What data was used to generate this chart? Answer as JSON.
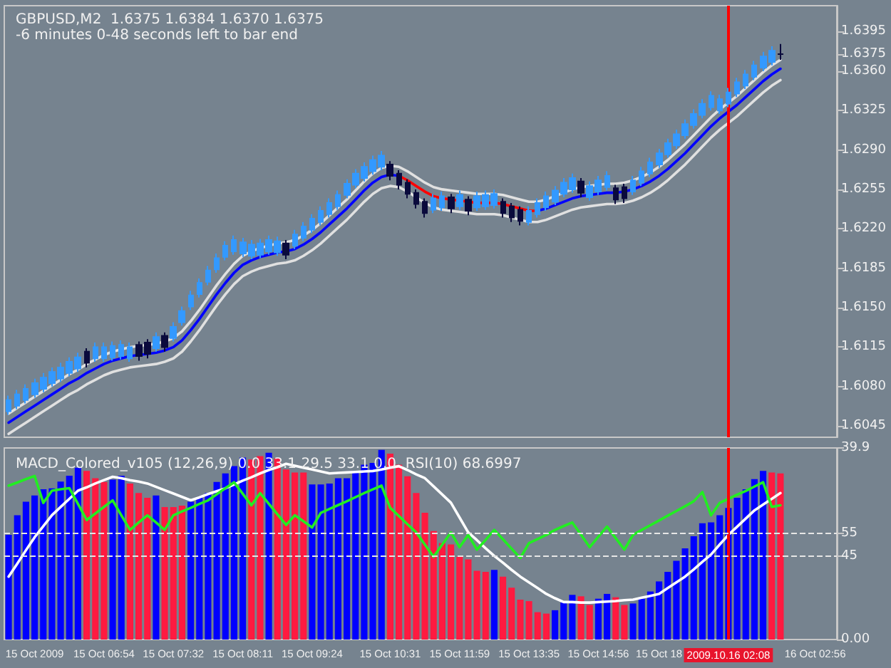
{
  "chart_data": [
    {
      "type": "candlestick",
      "title": "GBPUSD,M2  1.6375 1.6384 1.6370 1.6375",
      "subtitle": "-6 minutes 0-48 seconds left to bar end",
      "categories": [
        null,
        null,
        null,
        "15 Oct 2009",
        null,
        null,
        null,
        null,
        null,
        null,
        null,
        "15 Oct 06:54",
        null,
        null,
        null,
        null,
        null,
        null,
        null,
        "15 Oct 07:32",
        null,
        null,
        null,
        null,
        null,
        null,
        null,
        "15 Oct 08:11",
        null,
        null,
        null,
        null,
        null,
        null,
        null,
        "15 Oct 09:24",
        null,
        null,
        null,
        null,
        null,
        null,
        null,
        null,
        "15 Oct 10:31",
        null,
        null,
        null,
        null,
        null,
        null,
        null,
        "15 Oct 11:59",
        null,
        null,
        null,
        null,
        null,
        null,
        null,
        "15 Oct 13:35",
        null,
        null,
        null,
        null,
        null,
        null,
        null,
        "15 Oct 14:56",
        null,
        null,
        null,
        null,
        null,
        null,
        "15 Oct 18",
        null,
        null,
        null,
        null,
        null,
        null,
        null,
        "2009.10.16 02:08",
        null,
        null,
        null,
        null,
        null,
        null,
        null,
        null,
        null,
        "16 Oct 02:56",
        null,
        null
      ],
      "ylim": [
        1.6035,
        1.6418
      ],
      "yticks": [
        1.6045,
        {
          "value": 1.608,
          "label": "1.6080"
        },
        1.6115,
        {
          "value": 1.615,
          "label": "1.6150"
        },
        1.6185,
        {
          "value": 1.622,
          "label": "1.6220"
        },
        1.6255,
        {
          "value": 1.629,
          "label": "1.6290"
        },
        1.6325,
        {
          "value": 1.636,
          "label": "1.6360"
        },
        1.6375,
        1.6395
      ],
      "tick_labels": "y",
      "grid": false,
      "ref_lines": [
        {
          "axis": "x",
          "value": "2009.10.16 02:08",
          "label": null,
          "color": "#ff0000"
        }
      ],
      "series": [
        {
          "ohlc": [
            [
              1.6058,
              1.6072,
              1.6055,
              1.6068
            ],
            [
              1.6063,
              1.6077,
              1.606,
              1.6073
            ],
            [
              1.6068,
              1.6082,
              1.6065,
              1.6078
            ],
            [
              1.6073,
              1.6087,
              1.607,
              1.6083
            ],
            [
              1.6078,
              1.6092,
              1.6075,
              1.6088
            ],
            [
              1.6083,
              1.6097,
              1.608,
              1.6093
            ],
            [
              1.6087,
              1.6101,
              1.6084,
              1.6097
            ],
            [
              1.6092,
              1.6106,
              1.6089,
              1.6102
            ],
            [
              1.6096,
              1.611,
              1.6093,
              1.6106
            ],
            [
              1.6111,
              1.6114,
              1.6097,
              1.6101
            ],
            [
              1.6105,
              1.6119,
              1.6102,
              1.6115
            ],
            [
              1.6105,
              1.6119,
              1.6102,
              1.6115
            ],
            [
              1.6106,
              1.612,
              1.6103,
              1.6116
            ],
            [
              1.6107,
              1.6121,
              1.6104,
              1.6117
            ],
            [
              1.6105,
              1.6119,
              1.6102,
              1.6115
            ],
            [
              1.6117,
              1.612,
              1.6103,
              1.6107
            ],
            [
              1.6119,
              1.6122,
              1.6105,
              1.6109
            ],
            [
              1.6114,
              1.6128,
              1.6111,
              1.6124
            ],
            [
              1.6125,
              1.6128,
              1.6111,
              1.6115
            ],
            [
              1.6123,
              1.6137,
              1.612,
              1.6133
            ],
            [
              1.6137,
              1.6151,
              1.6134,
              1.6147
            ],
            [
              1.6151,
              1.6165,
              1.6148,
              1.6161
            ],
            [
              1.6162,
              1.6176,
              1.6159,
              1.6172
            ],
            [
              1.6173,
              1.6187,
              1.617,
              1.6183
            ],
            [
              1.6184,
              1.6198,
              1.6181,
              1.6194
            ],
            [
              1.6195,
              1.6209,
              1.6192,
              1.6205
            ],
            [
              1.62,
              1.6214,
              1.6197,
              1.621
            ],
            [
              1.6198,
              1.6212,
              1.6195,
              1.6208
            ],
            [
              1.6196,
              1.621,
              1.6193,
              1.6206
            ],
            [
              1.6197,
              1.6211,
              1.6194,
              1.6207
            ],
            [
              1.62,
              1.6214,
              1.6197,
              1.621
            ],
            [
              1.6199,
              1.6213,
              1.6196,
              1.6209
            ],
            [
              1.6207,
              1.621,
              1.6193,
              1.6197
            ],
            [
              1.6205,
              1.6219,
              1.6202,
              1.6215
            ],
            [
              1.6212,
              1.6226,
              1.6209,
              1.6222
            ],
            [
              1.6219,
              1.6233,
              1.6216,
              1.6229
            ],
            [
              1.6226,
              1.624,
              1.6223,
              1.6236
            ],
            [
              1.6233,
              1.6247,
              1.623,
              1.6243
            ],
            [
              1.624,
              1.6254,
              1.6237,
              1.625
            ],
            [
              1.625,
              1.6264,
              1.6247,
              1.626
            ],
            [
              1.6259,
              1.6273,
              1.6256,
              1.6269
            ],
            [
              1.6265,
              1.6279,
              1.6262,
              1.6275
            ],
            [
              1.6271,
              1.6285,
              1.6268,
              1.6281
            ],
            [
              1.6275,
              1.6289,
              1.6272,
              1.6285
            ],
            [
              1.6277,
              1.628,
              1.6263,
              1.6267
            ],
            [
              1.6269,
              1.6272,
              1.6255,
              1.6259
            ],
            [
              1.6261,
              1.6264,
              1.6247,
              1.6251
            ],
            [
              1.6252,
              1.6255,
              1.6238,
              1.6242
            ],
            [
              1.6244,
              1.6247,
              1.623,
              1.6234
            ],
            [
              1.6237,
              1.6251,
              1.6234,
              1.6247
            ],
            [
              1.6239,
              1.6253,
              1.6236,
              1.6249
            ],
            [
              1.6248,
              1.6251,
              1.6234,
              1.6238
            ],
            [
              1.624,
              1.6254,
              1.6237,
              1.625
            ],
            [
              1.6246,
              1.6249,
              1.6232,
              1.6236
            ],
            [
              1.6239,
              1.6253,
              1.6236,
              1.6249
            ],
            [
              1.624,
              1.6254,
              1.6237,
              1.625
            ],
            [
              1.6241,
              1.6255,
              1.6238,
              1.6251
            ],
            [
              1.6244,
              1.6247,
              1.623,
              1.6234
            ],
            [
              1.624,
              1.6243,
              1.6226,
              1.623
            ],
            [
              1.6237,
              1.624,
              1.6223,
              1.6227
            ],
            [
              1.6226,
              1.624,
              1.6223,
              1.6236
            ],
            [
              1.6233,
              1.6247,
              1.623,
              1.6243
            ],
            [
              1.6239,
              1.6253,
              1.6236,
              1.6249
            ],
            [
              1.6244,
              1.6258,
              1.6241,
              1.6254
            ],
            [
              1.6251,
              1.6265,
              1.6248,
              1.6261
            ],
            [
              1.6255,
              1.6269,
              1.6252,
              1.6265
            ],
            [
              1.6262,
              1.6265,
              1.6248,
              1.6252
            ],
            [
              1.6248,
              1.6262,
              1.6245,
              1.6258
            ],
            [
              1.6253,
              1.6267,
              1.625,
              1.6263
            ],
            [
              1.6257,
              1.6271,
              1.6254,
              1.6267
            ],
            [
              1.6256,
              1.6259,
              1.6242,
              1.6246
            ],
            [
              1.6257,
              1.626,
              1.6243,
              1.6247
            ],
            [
              1.6253,
              1.6267,
              1.625,
              1.6263
            ],
            [
              1.6261,
              1.6275,
              1.6258,
              1.6271
            ],
            [
              1.6269,
              1.6283,
              1.6266,
              1.6279
            ],
            [
              1.6277,
              1.6291,
              1.6274,
              1.6287
            ],
            [
              1.6286,
              1.63,
              1.6283,
              1.6296
            ],
            [
              1.6294,
              1.6308,
              1.6291,
              1.6304
            ],
            [
              1.6303,
              1.6317,
              1.63,
              1.6313
            ],
            [
              1.6312,
              1.6326,
              1.6309,
              1.6322
            ],
            [
              1.6321,
              1.6335,
              1.6318,
              1.6331
            ],
            [
              1.6328,
              1.6342,
              1.6325,
              1.6338
            ],
            [
              1.6325,
              1.6339,
              1.6322,
              1.6335
            ],
            [
              1.6331,
              1.6345,
              1.6328,
              1.6341
            ],
            [
              1.634,
              1.6354,
              1.6337,
              1.635
            ],
            [
              1.6347,
              1.6361,
              1.6344,
              1.6357
            ],
            [
              1.6355,
              1.6369,
              1.6352,
              1.6365
            ],
            [
              1.6363,
              1.6377,
              1.636,
              1.6373
            ],
            [
              1.6368,
              1.6382,
              1.6365,
              1.6378
            ],
            [
              1.6375,
              1.6384,
              1.637,
              1.6375
            ],
            null,
            null,
            null,
            null,
            null,
            null
          ],
          "colors": [
            "#3399ff",
            "#3399ff",
            "#3399ff",
            "#3399ff",
            "#3399ff",
            "#3399ff",
            "#3399ff",
            "#3399ff",
            "#3399ff",
            "#0a0a3c",
            "#3399ff",
            "#3399ff",
            "#3399ff",
            "#3399ff",
            "#3399ff",
            "#0a0a3c",
            "#0a0a3c",
            "#3399ff",
            "#0a0a3c",
            "#3399ff",
            "#3399ff",
            "#3399ff",
            "#3399ff",
            "#3399ff",
            "#3399ff",
            "#3399ff",
            "#3399ff",
            "#3399ff",
            "#3399ff",
            "#3399ff",
            "#3399ff",
            "#3399ff",
            "#0a0a3c",
            "#3399ff",
            "#3399ff",
            "#3399ff",
            "#3399ff",
            "#3399ff",
            "#3399ff",
            "#3399ff",
            "#3399ff",
            "#3399ff",
            "#3399ff",
            "#3399ff",
            "#0a0a3c",
            "#0a0a3c",
            "#0a0a3c",
            "#0a0a3c",
            "#0a0a3c",
            "#3399ff",
            "#3399ff",
            "#0a0a3c",
            "#3399ff",
            "#0a0a3c",
            "#3399ff",
            "#3399ff",
            "#3399ff",
            "#0a0a3c",
            "#0a0a3c",
            "#0a0a3c",
            "#3399ff",
            "#3399ff",
            "#3399ff",
            "#3399ff",
            "#3399ff",
            "#3399ff",
            "#0a0a3c",
            "#3399ff",
            "#3399ff",
            "#3399ff",
            "#0a0a3c",
            "#0a0a3c",
            "#3399ff",
            "#3399ff",
            "#3399ff",
            "#3399ff",
            "#3399ff",
            "#3399ff",
            "#3399ff",
            "#3399ff",
            "#3399ff",
            "#3399ff",
            "#3399ff",
            "#3399ff",
            "#3399ff",
            "#3399ff",
            "#3399ff",
            "#3399ff",
            "#3399ff",
            "#0a0a3c",
            null,
            null,
            null,
            null,
            null,
            null
          ]
        },
        {
          "type": "line",
          "color": "#0000ff",
          "values": [
            1.6048,
            1.6053,
            1.6058,
            1.6063,
            1.6068,
            1.6073,
            1.6078,
            1.6083,
            1.6087,
            1.6092,
            1.6096,
            1.61,
            1.6103,
            1.6105,
            1.6107,
            1.6108,
            1.6109,
            1.611,
            1.6112,
            1.6115,
            1.6121,
            1.613,
            1.614,
            1.6151,
            1.6162,
            1.6172,
            1.6181,
            1.6188,
            1.6192,
            1.6195,
            1.6197,
            1.6199,
            1.62,
            1.6202,
            1.6206,
            1.6211,
            1.6217,
            1.6224,
            1.6231,
            1.6238,
            1.6246,
            1.6254,
            1.6261,
            1.6266,
            1.6268,
            1.6267,
            null,
            null,
            null,
            null,
            null,
            null,
            null,
            null,
            null,
            null,
            null,
            null,
            null,
            null,
            null,
            1.6236,
            1.6238,
            1.6241,
            1.6244,
            1.6247,
            1.6249,
            1.625,
            1.6251,
            1.6252,
            1.6252,
            1.6253,
            1.6255,
            1.6258,
            1.6262,
            1.6267,
            1.6273,
            1.628,
            1.6287,
            1.6295,
            1.6303,
            1.6311,
            1.6318,
            1.6324,
            1.633,
            1.6337,
            1.6344,
            1.6351,
            1.6357,
            1.6362,
            null,
            null,
            null,
            null,
            null,
            null
          ]
        },
        {
          "type": "line",
          "color": "#ff0000",
          "values": [
            null,
            null,
            null,
            null,
            null,
            null,
            null,
            null,
            null,
            null,
            null,
            null,
            null,
            null,
            null,
            null,
            null,
            null,
            null,
            null,
            null,
            null,
            null,
            null,
            null,
            null,
            null,
            null,
            null,
            null,
            null,
            null,
            null,
            null,
            null,
            null,
            null,
            null,
            null,
            null,
            null,
            null,
            null,
            null,
            null,
            1.6267,
            1.6263,
            1.6258,
            1.6253,
            1.6249,
            1.6247,
            1.6246,
            1.6245,
            1.6244,
            1.6243,
            1.6243,
            1.6243,
            1.6242,
            1.624,
            1.6238,
            1.6236,
            1.6236,
            null,
            null,
            null,
            null,
            null,
            null,
            null,
            null,
            null,
            null,
            null,
            null,
            null,
            null,
            null,
            null,
            null,
            null,
            null,
            null,
            null,
            null,
            null,
            null,
            null,
            null,
            null,
            null,
            null,
            null,
            null,
            null,
            null,
            null
          ]
        },
        {
          "type": "line",
          "color": "#e0e0e0",
          "values": [
            1.6056,
            1.6061,
            1.6066,
            1.6071,
            1.6076,
            1.6081,
            1.6086,
            1.6091,
            1.6095,
            1.61,
            1.6104,
            1.6108,
            1.6111,
            1.6113,
            1.6115,
            1.6116,
            1.6117,
            1.6118,
            1.612,
            1.6123,
            1.6129,
            1.6138,
            1.6148,
            1.6159,
            1.617,
            1.618,
            1.6189,
            1.6196,
            1.62,
            1.6203,
            1.6205,
            1.6207,
            1.6208,
            1.621,
            1.6214,
            1.6219,
            1.6225,
            1.6232,
            1.6239,
            1.6246,
            1.6254,
            1.6262,
            1.6269,
            1.6274,
            1.6276,
            1.6275,
            1.6271,
            1.6266,
            1.6261,
            1.6257,
            1.6255,
            1.6254,
            1.6253,
            1.6252,
            1.6251,
            1.6251,
            1.6251,
            1.625,
            1.6248,
            1.6246,
            1.6244,
            1.6244,
            1.6246,
            1.6249,
            1.6252,
            1.6255,
            1.6257,
            1.6258,
            1.6259,
            1.626,
            1.626,
            1.6261,
            1.6263,
            1.6266,
            1.627,
            1.6275,
            1.6281,
            1.6288,
            1.6295,
            1.6303,
            1.6311,
            1.6319,
            1.6326,
            1.6332,
            1.6338,
            1.6345,
            1.6352,
            1.6359,
            1.6365,
            1.637,
            null,
            null,
            null,
            null,
            null,
            null
          ]
        },
        {
          "type": "line",
          "color": "#e0e0e0",
          "values": [
            1.6038,
            1.6043,
            1.6048,
            1.6053,
            1.6058,
            1.6063,
            1.6068,
            1.6073,
            1.6077,
            1.6082,
            1.6086,
            1.609,
            1.6093,
            1.6095,
            1.6097,
            1.6098,
            1.6099,
            1.61,
            1.6102,
            1.6105,
            1.6111,
            1.612,
            1.613,
            1.6141,
            1.6152,
            1.6162,
            1.6171,
            1.6178,
            1.6182,
            1.6185,
            1.6187,
            1.6189,
            1.619,
            1.6192,
            1.6196,
            1.6201,
            1.6207,
            1.6214,
            1.6221,
            1.6228,
            1.6236,
            1.6244,
            1.6251,
            1.6256,
            1.6258,
            1.6257,
            1.6253,
            1.6248,
            1.6243,
            1.6239,
            1.6237,
            1.6236,
            1.6235,
            1.6234,
            1.6233,
            1.6233,
            1.6233,
            1.6232,
            1.623,
            1.6228,
            1.6226,
            1.6226,
            1.6228,
            1.6231,
            1.6234,
            1.6237,
            1.6239,
            1.624,
            1.6241,
            1.6242,
            1.6242,
            1.6243,
            1.6245,
            1.6248,
            1.6252,
            1.6257,
            1.6263,
            1.627,
            1.6277,
            1.6285,
            1.6293,
            1.6301,
            1.6308,
            1.6314,
            1.632,
            1.6327,
            1.6334,
            1.6341,
            1.6347,
            1.6352,
            null,
            null,
            null,
            null,
            null,
            null
          ]
        }
      ]
    },
    {
      "type": "bar",
      "title": "MACD_Colored_v105 (12,26,9) 0.0 33.1 29.5 33.1 0.0  RSI(10) 68.6997",
      "categories": [
        null,
        null,
        null,
        "15 Oct 2009",
        null,
        null,
        null,
        null,
        null,
        null,
        null,
        "15 Oct 06:54",
        null,
        null,
        null,
        null,
        null,
        null,
        null,
        "15 Oct 07:32",
        null,
        null,
        null,
        null,
        null,
        null,
        null,
        "15 Oct 08:11",
        null,
        null,
        null,
        null,
        null,
        null,
        null,
        "15 Oct 09:24",
        null,
        null,
        null,
        null,
        null,
        null,
        null,
        null,
        "15 Oct 10:31",
        null,
        null,
        null,
        null,
        null,
        null,
        null,
        "15 Oct 11:59",
        null,
        null,
        null,
        null,
        null,
        null,
        null,
        "15 Oct 13:35",
        null,
        null,
        null,
        null,
        null,
        null,
        null,
        "15 Oct 14:56",
        null,
        null,
        null,
        null,
        null,
        null,
        "15 Oct 18",
        null,
        null,
        null,
        null,
        null,
        null,
        null,
        "2009.10.16 02:08",
        null,
        null,
        null,
        null,
        null,
        null,
        null,
        null,
        null,
        "16 Oct 02:56",
        null,
        null
      ],
      "ylim": [
        0,
        39.9
      ],
      "yticks": [
        {
          "value": 0,
          "label": "0.00"
        },
        39.9
      ],
      "y2lim": [
        8,
        92.8
      ],
      "y2ticks": [
        45,
        55
      ],
      "grid": false,
      "ref_lines": [
        {
          "axis": "x",
          "value": "2009.10.16 02:08",
          "label": null,
          "color": "#ff0000"
        },
        {
          "axis": "y2",
          "value": 55,
          "label": null,
          "color": "#e6e6e6",
          "line_style": "dashed"
        },
        {
          "axis": "y2",
          "value": 45,
          "label": null,
          "color": "#e6e6e6",
          "line_style": "dashed"
        }
      ],
      "series": [
        {
          "values": [
            21.8,
            25.9,
            28.7,
            30.0,
            31.3,
            31.5,
            32.9,
            34.1,
            35.8,
            35.1,
            33.6,
            32.8,
            33.3,
            34.1,
            32.5,
            30.5,
            29.5,
            30.0,
            27.6,
            27.6,
            27.9,
            28.7,
            29.5,
            30.5,
            32.8,
            34.6,
            36.1,
            37.9,
            37.5,
            38.2,
            38.9,
            37.7,
            35.4,
            34.8,
            34.8,
            32.3,
            32.3,
            32.5,
            33.6,
            33.6,
            35.1,
            36.4,
            36.8,
            39.5,
            38.7,
            36.4,
            34.0,
            30.5,
            26.4,
            22.6,
            20.1,
            19.8,
            17.2,
            16.7,
            14.3,
            14.1,
            14.5,
            13.1,
            10.8,
            8.3,
            8.0,
            5.7,
            5.4,
            6.1,
            7.7,
            9.3,
            9.0,
            7.2,
            8.5,
            9.5,
            8.8,
            7.2,
            7.5,
            8.5,
            10.0,
            12.1,
            14.1,
            16.4,
            19.0,
            21.5,
            24.2,
            24.4,
            25.9,
            27.4,
            29.5,
            31.3,
            33.4,
            35.1,
            34.8,
            34.6,
            null,
            null,
            null,
            null,
            null,
            null
          ],
          "colors": [
            "#0000ff",
            "#0000ff",
            "#0000ff",
            "#0000ff",
            "#0000ff",
            "#0000ff",
            "#0000ff",
            "#0000ff",
            "#0000ff",
            "#ff1a40",
            "#ff1a40",
            "#ff1a40",
            "#0000ff",
            "#0000ff",
            "#ff1a40",
            "#ff1a40",
            "#ff1a40",
            "#0000ff",
            "#ff1a40",
            "#ff1a40",
            "#ff1a40",
            "#0000ff",
            "#0000ff",
            "#0000ff",
            "#0000ff",
            "#0000ff",
            "#0000ff",
            "#0000ff",
            "#ff1a40",
            "#ff1a40",
            "#0000ff",
            "#ff1a40",
            "#ff1a40",
            "#ff1a40",
            "#ff1a40",
            "#0000ff",
            "#0000ff",
            "#0000ff",
            "#0000ff",
            "#0000ff",
            "#0000ff",
            "#0000ff",
            "#0000ff",
            "#0000ff",
            "#ff1a40",
            "#ff1a40",
            "#ff1a40",
            "#ff1a40",
            "#ff1a40",
            "#ff1a40",
            "#ff1a40",
            "#ff1a40",
            "#ff1a40",
            "#ff1a40",
            "#ff1a40",
            "#ff1a40",
            "#0000ff",
            "#ff1a40",
            "#ff1a40",
            "#ff1a40",
            "#ff1a40",
            "#ff1a40",
            "#ff1a40",
            "#0000ff",
            "#0000ff",
            "#0000ff",
            "#ff1a40",
            "#ff1a40",
            "#0000ff",
            "#0000ff",
            "#ff1a40",
            "#ff1a40",
            "#0000ff",
            "#0000ff",
            "#0000ff",
            "#0000ff",
            "#0000ff",
            "#0000ff",
            "#0000ff",
            "#0000ff",
            "#0000ff",
            "#0000ff",
            "#0000ff",
            "#0000ff",
            "#0000ff",
            "#0000ff",
            "#0000ff",
            "#0000ff",
            "#ff1a40",
            "#ff1a40",
            null,
            null,
            null,
            null,
            null,
            null
          ]
        },
        {
          "type": "line",
          "color": "#ffffff",
          "values": [
            13.1,
            15.8,
            18.6,
            21.3,
            23.6,
            25.9,
            27.6,
            29.3,
            31.0,
            31.7,
            32.5,
            33.2,
            33.9,
            33.6,
            33.2,
            32.9,
            32.5,
            31.8,
            31.1,
            30.4,
            29.7,
            29.0,
            29.6,
            30.3,
            30.9,
            31.5,
            32.3,
            33.1,
            33.8,
            34.6,
            35.3,
            35.9,
            36.6,
            36.2,
            35.8,
            35.4,
            35.0,
            34.6,
            34.7,
            34.8,
            34.9,
            35.0,
            35.1,
            35.4,
            35.8,
            36.1,
            35.3,
            34.4,
            33.6,
            31.9,
            30.2,
            28.5,
            25.4,
            22.3,
            20.7,
            19.0,
            17.4,
            16.0,
            14.5,
            13.1,
            11.9,
            10.7,
            9.5,
            8.6,
            7.8,
            7.8,
            7.7,
            7.7,
            7.8,
            7.9,
            8.0,
            8.2,
            8.3,
            8.7,
            9.1,
            9.5,
            10.7,
            11.9,
            13.1,
            14.6,
            16.2,
            17.7,
            19.8,
            21.8,
            23.5,
            25.2,
            26.9,
            28.1,
            29.3,
            30.5,
            null,
            null,
            null,
            null,
            null,
            null
          ]
        },
        {
          "type": "line",
          "color": "#22ee22",
          "axis": "y2",
          "values": [
            76.1,
            77.5,
            79.0,
            80.4,
            68.5,
            73.9,
            74.5,
            75.0,
            68.0,
            60.9,
            63.8,
            66.7,
            69.6,
            63.0,
            56.5,
            59.8,
            63.0,
            59.8,
            56.5,
            63.0,
            64.7,
            66.3,
            68.0,
            69.6,
            72.3,
            75.0,
            77.6,
            72.5,
            67.4,
            72.8,
            68.1,
            63.4,
            58.7,
            63.0,
            60.3,
            57.6,
            64.1,
            65.8,
            67.5,
            69.2,
            71.0,
            72.8,
            74.5,
            76.1,
            66.3,
            62.7,
            59.0,
            55.4,
            50.0,
            44.6,
            50.0,
            55.4,
            48.9,
            54.3,
            47.8,
            52.1,
            56.5,
            52.4,
            48.2,
            44.1,
            50.7,
            52.5,
            54.3,
            56.5,
            58.2,
            59.8,
            54.4,
            48.9,
            53.5,
            58.0,
            52.9,
            47.8,
            54.3,
            56.5,
            58.6,
            60.7,
            62.8,
            64.9,
            67.0,
            69.2,
            73.3,
            63.0,
            68.5,
            70.3,
            72.1,
            73.8,
            75.7,
            77.6,
            66.7,
            67.4,
            null,
            null,
            null,
            null,
            null,
            null
          ]
        }
      ]
    }
  ]
}
